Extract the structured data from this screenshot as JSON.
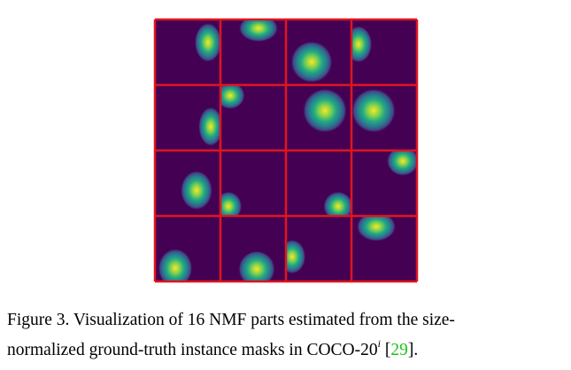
{
  "caption": {
    "lines": [
      "Figure 3. Visualization of 16 NMF parts estimated from the size-",
      "normalized ground-truth instance masks in COCO-20"
    ],
    "superscript": "i",
    "citation_open": " [",
    "citation": "29",
    "citation_close": "]."
  }
}
